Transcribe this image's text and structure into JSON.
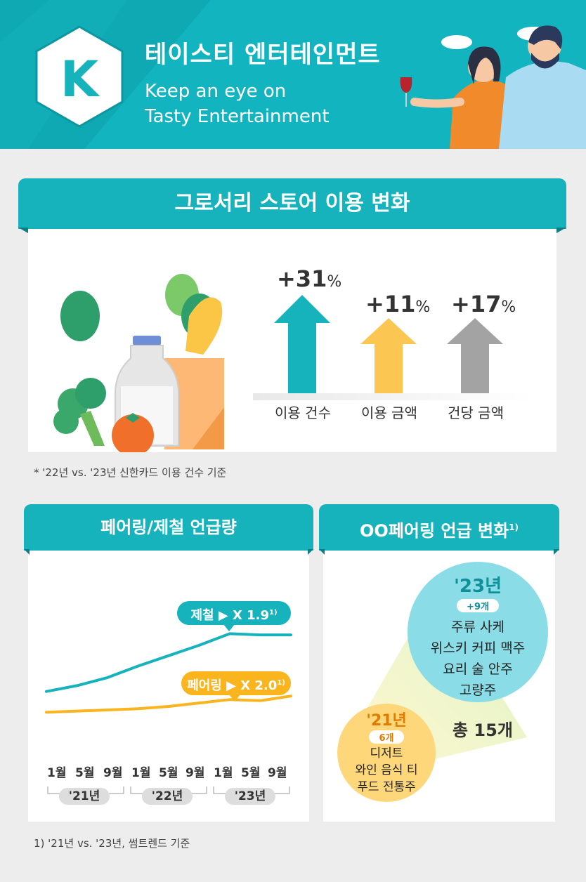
{
  "header": {
    "title": "테이스티 엔터테인먼트",
    "subtitle_line1": "Keep an eye on",
    "subtitle_line2": "Tasty Entertainment",
    "logo_letter": "K"
  },
  "grocery": {
    "title": "그로서리 스토어 이용 변화",
    "items": [
      {
        "label": "이용 건수",
        "sign": "+",
        "value": "31",
        "unit": "%",
        "color": "#16b3bd"
      },
      {
        "label": "이용 금액",
        "sign": "+",
        "value": "11",
        "unit": "%",
        "color": "#fcc653"
      },
      {
        "label": "건당 금액",
        "sign": "+",
        "value": "17",
        "unit": "%",
        "color": "#a3a3a3"
      }
    ],
    "footnote": "* '22년 vs. '23년 신한카드 이용 건수 기준"
  },
  "pairing": {
    "title": "페어링/제철 언급량",
    "tag_season": "제철 ▶ X 1.9",
    "tag_season_sup": "1)",
    "tag_pairing": "페어링 ▶ X 2.0",
    "tag_pairing_sup": "1)",
    "months": [
      "1월",
      "5월",
      "9월",
      "1월",
      "5월",
      "9월",
      "1월",
      "5월",
      "9월"
    ],
    "years": [
      "'21년",
      "'22년",
      "'23년"
    ],
    "footnote": "1) '21년 vs. '23년, 썸트렌드 기준"
  },
  "oo_pairing": {
    "title": "OO페어링 언급 변화",
    "title_sup": "1)",
    "y23": {
      "year": "'23년",
      "count": "+9개",
      "lines": [
        "주류  사케",
        "위스키  커피  맥주",
        "요리  술  안주",
        "고량주"
      ]
    },
    "y21": {
      "year": "'21년",
      "count": "6개",
      "lines": [
        "디저트",
        "와인  음식  티",
        "푸드  전통주"
      ]
    },
    "total": "총 15개"
  },
  "chart_data": {
    "type": "line",
    "title": "",
    "xlabel": "",
    "ylabel": "",
    "categories": [
      "1월",
      "5월",
      "9월",
      "1월",
      "5월",
      "9월",
      "1월",
      "5월",
      "9월"
    ],
    "series": [
      {
        "name": "제철",
        "color": "#16b3bd",
        "values": [
          30,
          35,
          42,
          52,
          61,
          70,
          80,
          79,
          79
        ]
      },
      {
        "name": "페어링",
        "color": "#fab51e",
        "values": [
          12,
          13,
          14,
          15,
          17,
          20,
          23,
          22,
          26
        ]
      }
    ]
  }
}
